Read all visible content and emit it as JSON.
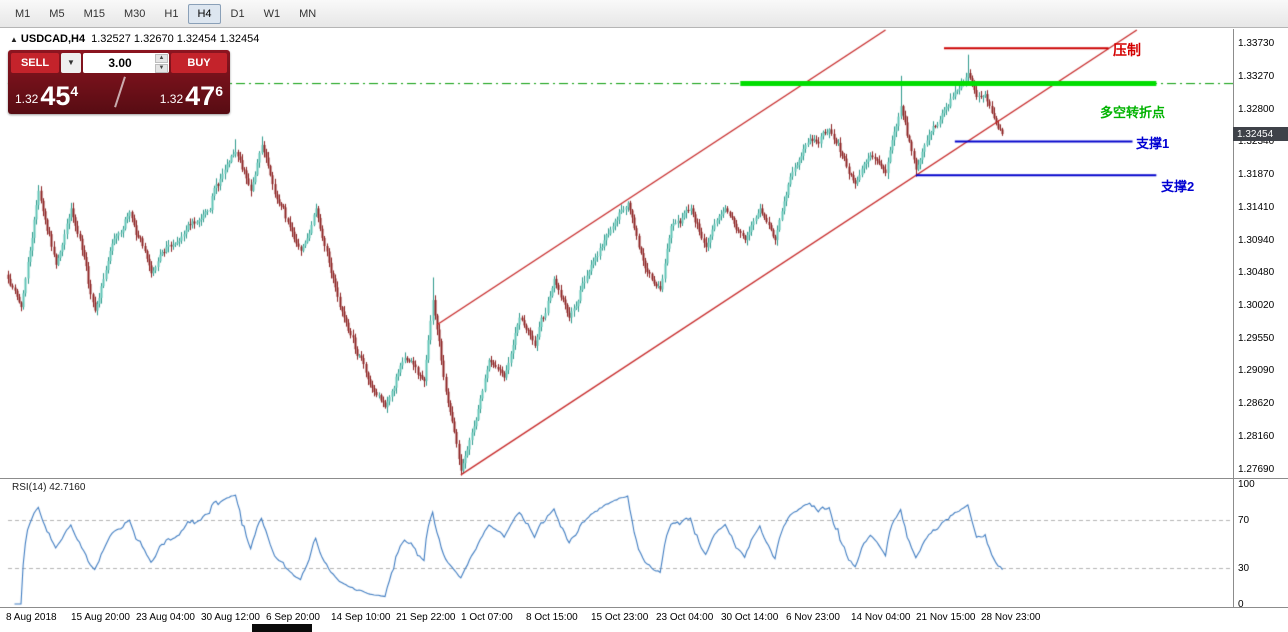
{
  "toolbar": {
    "timeframes": [
      {
        "label": "M1",
        "active": false
      },
      {
        "label": "M5",
        "active": false
      },
      {
        "label": "M15",
        "active": false
      },
      {
        "label": "M30",
        "active": false
      },
      {
        "label": "H1",
        "active": false
      },
      {
        "label": "H4",
        "active": true
      },
      {
        "label": "D1",
        "active": false
      },
      {
        "label": "W1",
        "active": false
      },
      {
        "label": "MN",
        "active": false
      }
    ]
  },
  "chart": {
    "symbol_period": "USDCAD,H4",
    "ohlc": "1.32527 1.32670 1.32454 1.32454"
  },
  "icons": {
    "collapse": "▲",
    "dropdown": "▼",
    "spinner_up": "▲",
    "spinner_down": "▼"
  },
  "trade_panel": {
    "sell_label": "SELL",
    "buy_label": "BUY",
    "volume": "3.00",
    "bid": {
      "prefix": "1.32",
      "big": "45",
      "sup": "4"
    },
    "ask": {
      "prefix": "1.32",
      "big": "47",
      "sup": "6"
    }
  },
  "annotations": {
    "resistance": "压制",
    "turning_point": "多空转折点",
    "support1": "支撑1",
    "support2": "支撑2"
  },
  "price_axis": [
    "1.33730",
    "1.33270",
    "1.32800",
    "1.32340",
    "1.31870",
    "1.31410",
    "1.30940",
    "1.30480",
    "1.30020",
    "1.29550",
    "1.29090",
    "1.28620",
    "1.28160",
    "1.27690"
  ],
  "current_price": "1.32454",
  "time_axis": [
    "8 Aug 2018",
    "15 Aug 20:00",
    "23 Aug 04:00",
    "30 Aug 12:00",
    "6 Sep 20:00",
    "14 Sep 10:00",
    "21 Sep 22:00",
    "1 Oct 07:00",
    "8 Oct 15:00",
    "15 Oct 23:00",
    "23 Oct 04:00",
    "30 Oct 14:00",
    "6 Nov 23:00",
    "14 Nov 04:00",
    "21 Nov 15:00",
    "28 Nov 23:00"
  ],
  "rsi": {
    "label": "RSI(14) 42.7160",
    "axis": [
      "100",
      "70",
      "30",
      "0"
    ]
  },
  "chart_data": {
    "type": "candlestick",
    "title": "USDCAD,H4",
    "symbol": "USDCAD",
    "timeframe": "H4",
    "bars": 460,
    "price_range": [
      1.2759,
      1.3393
    ],
    "last_close": 1.32454,
    "pivots": [
      [
        0,
        1.304
      ],
      [
        6,
        1.3
      ],
      [
        14,
        1.3165
      ],
      [
        22,
        1.306
      ],
      [
        29,
        1.314
      ],
      [
        40,
        1.2995
      ],
      [
        48,
        1.309
      ],
      [
        56,
        1.3135
      ],
      [
        66,
        1.3048
      ],
      [
        77,
        1.309
      ],
      [
        89,
        1.3125
      ],
      [
        100,
        1.3195
      ],
      [
        105,
        1.322
      ],
      [
        112,
        1.3165
      ],
      [
        117,
        1.323
      ],
      [
        123,
        1.316
      ],
      [
        135,
        1.308
      ],
      [
        142,
        1.314
      ],
      [
        153,
        1.3
      ],
      [
        167,
        1.289
      ],
      [
        174,
        1.2858
      ],
      [
        183,
        1.2928
      ],
      [
        192,
        1.2895
      ],
      [
        196,
        1.301
      ],
      [
        202,
        1.288
      ],
      [
        209,
        1.2768
      ],
      [
        216,
        1.284
      ],
      [
        222,
        1.2925
      ],
      [
        229,
        1.29
      ],
      [
        236,
        1.2985
      ],
      [
        243,
        1.2945
      ],
      [
        252,
        1.304
      ],
      [
        259,
        1.2985
      ],
      [
        269,
        1.306
      ],
      [
        278,
        1.311
      ],
      [
        286,
        1.3148
      ],
      [
        294,
        1.3055
      ],
      [
        301,
        1.3025
      ],
      [
        306,
        1.3115
      ],
      [
        315,
        1.314
      ],
      [
        322,
        1.3085
      ],
      [
        331,
        1.314
      ],
      [
        340,
        1.3095
      ],
      [
        347,
        1.314
      ],
      [
        354,
        1.3095
      ],
      [
        361,
        1.3185
      ],
      [
        368,
        1.323
      ],
      [
        379,
        1.3252
      ],
      [
        391,
        1.3175
      ],
      [
        398,
        1.3215
      ],
      [
        405,
        1.319
      ],
      [
        412,
        1.3285
      ],
      [
        419,
        1.3195
      ],
      [
        425,
        1.3245
      ],
      [
        432,
        1.328
      ],
      [
        439,
        1.331
      ],
      [
        443,
        1.3332
      ],
      [
        447,
        1.3298
      ],
      [
        451,
        1.3302
      ],
      [
        455,
        1.3268
      ],
      [
        459,
        1.32454
      ]
    ],
    "spikes": [
      [
        105,
        "high",
        1.3238
      ],
      [
        117,
        "high",
        1.3242
      ],
      [
        196,
        "high",
        1.3042
      ],
      [
        209,
        "low",
        1.2765
      ],
      [
        412,
        "high",
        1.3328
      ],
      [
        419,
        "low",
        1.3185
      ],
      [
        443,
        "high",
        1.3358
      ]
    ],
    "levels": {
      "resistance": {
        "price": 1.3367,
        "bar_start": 432,
        "bar_end": 508
      },
      "turning_point": {
        "price": 1.3317,
        "bar_start": 338,
        "bar_end": 530
      },
      "support1": {
        "price": 1.3235,
        "bar_start": 437,
        "bar_end": 519
      },
      "support2": {
        "price": 1.3187,
        "bar_start": 419,
        "bar_end": 530
      }
    },
    "trendlines": {
      "lower": [
        [
          209,
          1.2762
        ],
        [
          521,
          1.3393
        ]
      ],
      "upper": [
        [
          198,
          1.2975
        ],
        [
          405,
          1.3393
        ]
      ]
    },
    "rsi": {
      "period": 14,
      "current": 42.716,
      "guides": [
        70,
        30
      ],
      "range": [
        0,
        100
      ]
    },
    "colors": {
      "up": "#2f9a8c",
      "up_fill": "#5fc4b5",
      "down": "#8b2020",
      "down_fill": "#8b2020",
      "trend": "#c62828",
      "resistance": "#cc0000",
      "turning": "#00dd00",
      "turning_dash": "#009900",
      "support": "#0000cc",
      "rsi": "#3f7cc1",
      "tag_bg": "#3f4249"
    }
  }
}
